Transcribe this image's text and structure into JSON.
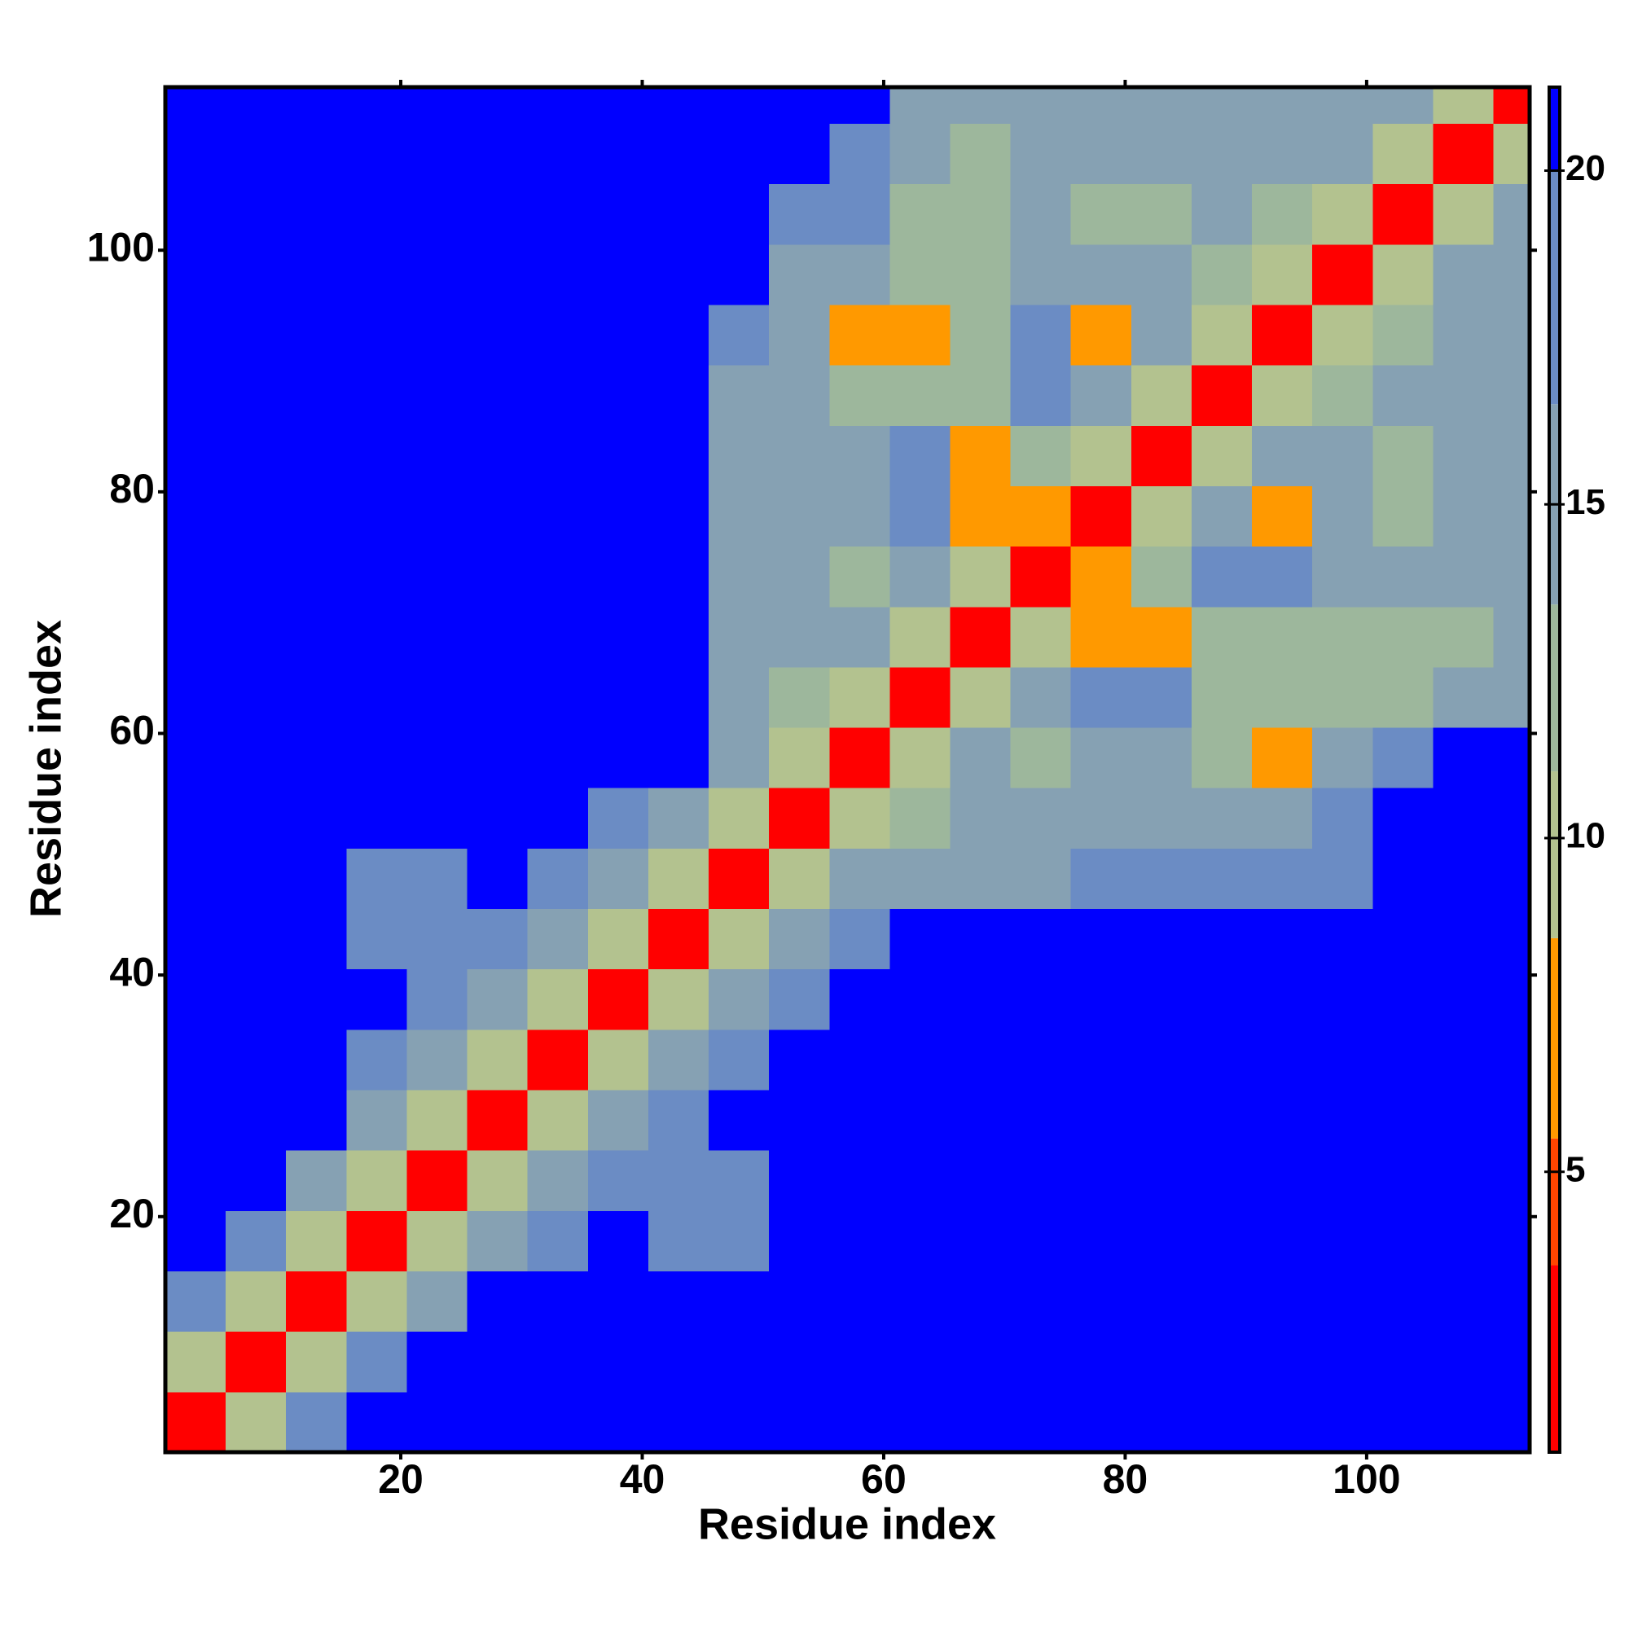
{
  "chart_data": {
    "type": "heatmap",
    "x_label": "Residue index",
    "y_label": "Residue index",
    "xlim": [
      0.5,
      113.5
    ],
    "ylim": [
      0.5,
      113.5
    ],
    "xticks": [
      20,
      40,
      60,
      80,
      100
    ],
    "yticks": [
      20,
      40,
      60,
      80,
      100
    ],
    "x_bins": [
      0.5,
      5.5,
      10.5,
      15.5,
      20.5,
      25.5,
      30.5,
      35.5,
      40.5,
      45.5,
      50.5,
      55.5,
      60.5,
      65.5,
      70.5,
      75.5,
      80.5,
      85.5,
      90.5,
      95.5,
      100.5,
      105.5,
      110.5,
      113.5
    ],
    "y_bins": [
      0.5,
      5.5,
      10.5,
      15.5,
      20.5,
      25.5,
      30.5,
      35.5,
      40.5,
      45.5,
      50.5,
      55.5,
      60.5,
      65.5,
      70.5,
      75.5,
      80.5,
      85.5,
      90.5,
      95.5,
      100.5,
      105.5,
      110.5,
      113.5
    ],
    "clim": [
      0.8,
      21.25
    ],
    "cticks": [
      5,
      10,
      15,
      20
    ],
    "colorscale": [
      {
        "value": 3.6,
        "color": "#ff0000"
      },
      {
        "value": 5.5,
        "color": "#ff4500"
      },
      {
        "value": 8.5,
        "color": "#ff9900"
      },
      {
        "value": 11,
        "color": "#b3c28f"
      },
      {
        "value": 13.5,
        "color": "#9db79c"
      },
      {
        "value": 16.5,
        "color": "#86a1b3"
      },
      {
        "value": 20,
        "color": "#6b8cc4"
      },
      {
        "value": 21.25,
        "color": "#0000ff"
      }
    ],
    "values": [
      [
        3,
        9,
        17,
        21,
        21,
        21,
        21,
        21,
        21,
        21,
        21,
        21,
        21,
        21,
        21,
        21,
        21,
        21,
        21,
        21,
        21,
        21,
        21
      ],
      [
        9,
        3,
        9,
        17,
        21,
        21,
        21,
        21,
        21,
        21,
        21,
        21,
        21,
        21,
        21,
        21,
        21,
        21,
        21,
        21,
        21,
        21,
        21
      ],
      [
        17,
        9,
        3,
        9,
        16,
        21,
        21,
        21,
        21,
        21,
        21,
        21,
        21,
        21,
        21,
        21,
        21,
        21,
        21,
        21,
        21,
        21,
        21
      ],
      [
        21,
        17,
        9,
        3,
        9,
        15,
        20,
        21,
        19,
        20,
        21,
        21,
        21,
        21,
        21,
        21,
        21,
        21,
        21,
        21,
        21,
        21,
        21
      ],
      [
        21,
        21,
        15,
        9,
        3,
        9,
        14,
        19,
        19,
        20,
        21,
        21,
        21,
        21,
        21,
        21,
        21,
        21,
        21,
        21,
        21,
        21,
        21
      ],
      [
        21,
        21,
        21,
        15,
        9,
        3,
        9,
        14,
        18,
        21,
        21,
        21,
        21,
        21,
        21,
        21,
        21,
        21,
        21,
        21,
        21,
        21,
        21
      ],
      [
        21,
        21,
        21,
        20,
        14,
        9,
        3,
        9,
        14,
        19,
        21,
        21,
        21,
        21,
        21,
        21,
        21,
        21,
        21,
        21,
        21,
        21,
        21
      ],
      [
        21,
        21,
        21,
        21,
        19,
        14,
        9,
        3,
        9,
        14,
        18,
        21,
        21,
        21,
        21,
        21,
        21,
        21,
        21,
        21,
        21,
        21,
        21
      ],
      [
        21,
        21,
        21,
        19,
        19,
        18,
        14,
        9,
        3,
        9,
        14,
        19,
        21,
        21,
        21,
        21,
        21,
        21,
        21,
        21,
        21,
        21,
        21
      ],
      [
        21,
        21,
        21,
        20,
        20,
        21,
        19,
        14,
        9,
        3,
        9,
        14,
        16,
        16,
        16,
        17,
        17,
        18,
        17,
        18,
        21,
        21,
        21
      ],
      [
        21,
        21,
        21,
        21,
        21,
        21,
        21,
        18,
        14,
        9,
        3,
        9,
        13,
        14,
        14,
        15,
        14,
        15,
        15,
        18,
        21,
        21,
        21
      ],
      [
        21,
        21,
        21,
        21,
        21,
        21,
        21,
        21,
        21,
        14,
        9,
        3,
        9,
        14,
        13,
        15,
        14,
        13,
        7,
        14,
        20,
        21,
        21
      ],
      [
        21,
        21,
        21,
        21,
        21,
        21,
        21,
        21,
        21,
        16,
        13,
        9,
        3,
        9,
        14,
        20,
        17,
        13,
        13,
        12,
        13,
        14,
        15
      ],
      [
        21,
        21,
        21,
        21,
        21,
        21,
        21,
        21,
        21,
        16,
        14,
        14,
        9,
        3,
        9,
        7,
        7,
        12,
        12,
        13,
        12,
        13,
        14
      ],
      [
        21,
        21,
        21,
        21,
        21,
        21,
        21,
        21,
        21,
        15,
        15,
        13,
        14,
        9,
        3,
        7,
        13,
        19,
        18,
        14,
        15,
        16,
        16
      ],
      [
        21,
        21,
        21,
        21,
        21,
        21,
        21,
        21,
        21,
        15,
        15,
        15,
        20,
        7,
        7,
        3,
        9,
        15,
        7,
        14,
        13,
        15,
        16
      ],
      [
        21,
        21,
        21,
        21,
        21,
        21,
        21,
        21,
        21,
        15,
        14,
        14,
        17,
        7,
        13,
        9,
        3,
        9,
        16,
        15,
        13,
        14,
        16
      ],
      [
        21,
        21,
        21,
        21,
        21,
        21,
        21,
        21,
        21,
        16,
        14,
        13,
        13,
        12,
        19,
        15,
        9,
        3,
        9,
        12,
        14,
        15,
        16
      ],
      [
        21,
        21,
        21,
        21,
        21,
        21,
        21,
        21,
        21,
        17,
        15,
        7,
        7,
        12,
        18,
        7,
        16,
        9,
        3,
        9,
        13,
        14,
        15
      ],
      [
        21,
        21,
        21,
        21,
        21,
        21,
        21,
        21,
        21,
        21,
        16,
        14,
        12,
        13,
        14,
        14,
        15,
        12,
        9,
        3,
        9,
        14,
        15
      ],
      [
        21,
        21,
        21,
        21,
        21,
        21,
        21,
        21,
        21,
        21,
        18,
        17,
        13,
        12,
        15,
        13,
        13,
        14,
        13,
        9,
        3,
        9,
        14
      ],
      [
        21,
        21,
        21,
        21,
        21,
        21,
        21,
        21,
        21,
        21,
        21,
        19,
        14,
        13,
        16,
        15,
        14,
        15,
        14,
        14,
        9,
        3,
        9
      ],
      [
        21,
        21,
        21,
        21,
        21,
        21,
        21,
        21,
        21,
        21,
        21,
        21,
        15,
        14,
        16,
        16,
        16,
        16,
        15,
        15,
        14,
        9,
        3
      ]
    ]
  }
}
